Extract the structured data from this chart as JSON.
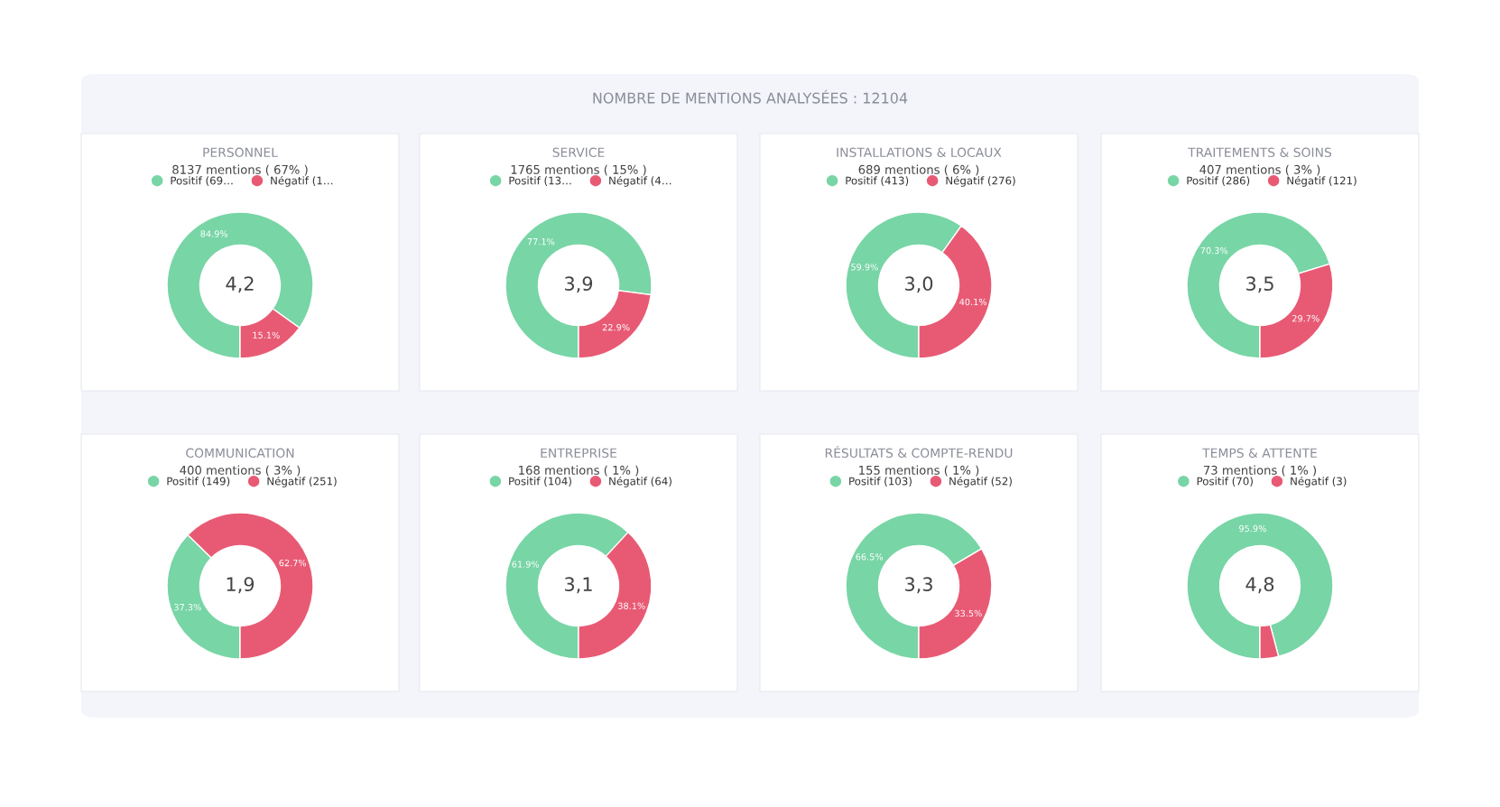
{
  "chart_data": [
    {
      "type": "other",
      "title": "NOMBRE DE MENTIONS ANALYSÉES : 12104"
    },
    {
      "type": "donut",
      "title": "PERSONNEL",
      "subtitle": "8137 mentions ( 67% )",
      "categories": [
        "Positif (69…",
        "Négatif (1…"
      ],
      "values": [
        84.9,
        15.1
      ],
      "colors": [
        "#78d5a6",
        "#e85a74"
      ],
      "value_labels": [
        "84.9%",
        "15.1%"
      ],
      "annotations": [
        "4,2"
      ],
      "legend": "top"
    },
    {
      "type": "donut",
      "title": "SERVICE",
      "subtitle": "1765 mentions ( 15% )",
      "categories": [
        "Positif (13…",
        "Négatif (4…"
      ],
      "values": [
        77.1,
        22.9
      ],
      "colors": [
        "#78d5a6",
        "#e85a74"
      ],
      "value_labels": [
        "77.1%",
        "22.9%"
      ],
      "annotations": [
        "3,9"
      ],
      "legend": "top"
    },
    {
      "type": "donut",
      "title": "INSTALLATIONS & LOCAUX",
      "subtitle": "689 mentions ( 6% )",
      "categories": [
        "Positif (413)",
        "Négatif (276)"
      ],
      "values": [
        59.9,
        40.1
      ],
      "colors": [
        "#78d5a6",
        "#e85a74"
      ],
      "value_labels": [
        "59.9%",
        "40.1%"
      ],
      "annotations": [
        "3,0"
      ],
      "legend": "top"
    },
    {
      "type": "donut",
      "title": "TRAITEMENTS & SOINS",
      "subtitle": "407 mentions ( 3% )",
      "categories": [
        "Positif (286)",
        "Négatif (121)"
      ],
      "values": [
        70.3,
        29.7
      ],
      "colors": [
        "#78d5a6",
        "#e85a74"
      ],
      "value_labels": [
        "70.3%",
        "29.7%"
      ],
      "annotations": [
        "3,5"
      ],
      "legend": "top"
    },
    {
      "type": "donut",
      "title": "COMMUNICATION",
      "subtitle": "400 mentions ( 3% )",
      "categories": [
        "Positif (149)",
        "Négatif (251)"
      ],
      "values": [
        37.3,
        62.7
      ],
      "colors": [
        "#78d5a6",
        "#e85a74"
      ],
      "value_labels": [
        "37.3%",
        "62.7%"
      ],
      "annotations": [
        "1,9"
      ],
      "legend": "top"
    },
    {
      "type": "donut",
      "title": "ENTREPRISE",
      "subtitle": "168 mentions ( 1% )",
      "categories": [
        "Positif (104)",
        "Négatif (64)"
      ],
      "values": [
        61.9,
        38.1
      ],
      "colors": [
        "#78d5a6",
        "#e85a74"
      ],
      "value_labels": [
        "61.9%",
        "38.1%"
      ],
      "annotations": [
        "3,1"
      ],
      "legend": "top"
    },
    {
      "type": "donut",
      "title": "RÉSULTATS & COMPTE-RENDU",
      "subtitle": "155 mentions ( 1% )",
      "categories": [
        "Positif (103)",
        "Négatif (52)"
      ],
      "values": [
        66.5,
        33.5
      ],
      "colors": [
        "#78d5a6",
        "#e85a74"
      ],
      "value_labels": [
        "66.5%",
        "33.5%"
      ],
      "annotations": [
        "3,3"
      ],
      "legend": "top"
    },
    {
      "type": "donut",
      "title": "TEMPS & ATTENTE",
      "subtitle": "73 mentions ( 1% )",
      "categories": [
        "Positif (70)",
        "Négatif (3)"
      ],
      "values": [
        95.9,
        4.1
      ],
      "colors": [
        "#78d5a6",
        "#e85a74"
      ],
      "value_labels": [
        "95.9%",
        null
      ],
      "annotations": [
        "4,8"
      ],
      "legend": "top"
    }
  ]
}
